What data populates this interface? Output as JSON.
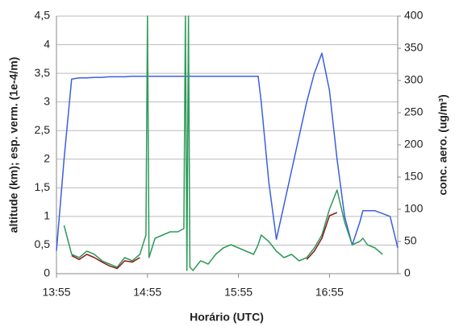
{
  "chart_data": {
    "type": "line",
    "x_label": "Horário (UTC)",
    "y_label": "altitude (km); esp. verm. (1e-4/m)",
    "y2_label": "conc. aero. (ug/m³)",
    "x": [
      "13:55",
      "14:00",
      "14:05",
      "14:10",
      "14:15",
      "14:20",
      "14:25",
      "14:30",
      "14:35",
      "14:40",
      "14:45",
      "14:50",
      "14:54",
      "14:55",
      "14:56",
      "15:00",
      "15:05",
      "15:10",
      "15:15",
      "15:19",
      "15:20",
      "15:21",
      "15:22",
      "15:23",
      "15:25",
      "15:30",
      "15:35",
      "15:40",
      "15:45",
      "15:50",
      "15:55",
      "16:00",
      "16:05",
      "16:08",
      "16:10",
      "16:15",
      "16:20",
      "16:25",
      "16:30",
      "16:35",
      "16:40",
      "16:45",
      "16:50",
      "16:55",
      "17:00",
      "17:05",
      "17:10",
      "17:15",
      "17:17",
      "17:20",
      "17:25",
      "17:30",
      "17:35",
      "17:40"
    ],
    "series": [
      {
        "color": "#3a5fe0",
        "values": [
          0.4,
          2.0,
          3.4,
          3.42,
          3.42,
          3.43,
          3.43,
          3.44,
          3.44,
          3.44,
          3.45,
          3.45,
          3.45,
          3.45,
          3.45,
          3.45,
          3.45,
          3.45,
          3.45,
          3.45,
          3.45,
          3.45,
          3.45,
          3.45,
          3.45,
          3.45,
          3.45,
          3.45,
          3.45,
          3.45,
          3.45,
          3.45,
          3.45,
          3.45,
          3.0,
          1.6,
          0.6,
          1.2,
          1.8,
          2.4,
          3.0,
          3.5,
          3.85,
          3.2,
          2.0,
          1.0,
          0.5,
          0.9,
          1.1,
          1.1,
          1.1,
          1.05,
          1.0,
          0.45
        ]
      },
      {
        "color": "#2e9a5a",
        "axis": "y2",
        "values": [
          null,
          75,
          30,
          25,
          35,
          30,
          20,
          15,
          10,
          25,
          20,
          30,
          60,
          400,
          25,
          55,
          60,
          65,
          65,
          70,
          400,
          5,
          400,
          10,
          5,
          20,
          15,
          30,
          40,
          45,
          40,
          35,
          30,
          45,
          60,
          50,
          35,
          25,
          30,
          20,
          25,
          40,
          60,
          100,
          130,
          80,
          45,
          50,
          55,
          45,
          40,
          30,
          null,
          null
        ]
      },
      {
        "color": "#8b1a1a",
        "axis": "y2",
        "values": [
          null,
          null,
          28,
          22,
          30,
          25,
          18,
          12,
          8,
          20,
          18,
          25,
          null,
          null,
          null,
          null,
          null,
          null,
          null,
          null,
          null,
          null,
          null,
          null,
          null,
          null,
          null,
          null,
          null,
          null,
          null,
          null,
          null,
          null,
          null,
          null,
          null,
          null,
          null,
          null,
          22,
          35,
          55,
          90,
          95,
          null,
          null,
          null,
          null,
          null,
          null,
          null,
          null,
          null
        ]
      }
    ],
    "xlim": [
      "13:55",
      "17:40"
    ],
    "xticks": [
      "13:55",
      "14:55",
      "15:55",
      "16:55"
    ],
    "ylim": [
      0,
      4.5
    ],
    "yticks": [
      0,
      {
        "value": 0.5,
        "label": "0,5"
      },
      1,
      {
        "value": 1.5,
        "label": "1,5"
      },
      2,
      {
        "value": 2.5,
        "label": "2,5"
      },
      3,
      {
        "value": 3.5,
        "label": "3,5"
      },
      4,
      {
        "value": 4.5,
        "label": "4,5"
      }
    ],
    "y2lim": [
      0,
      400
    ],
    "y2ticks": [
      0,
      50,
      100,
      150,
      200,
      250,
      300,
      350,
      400
    ],
    "grid": true
  }
}
